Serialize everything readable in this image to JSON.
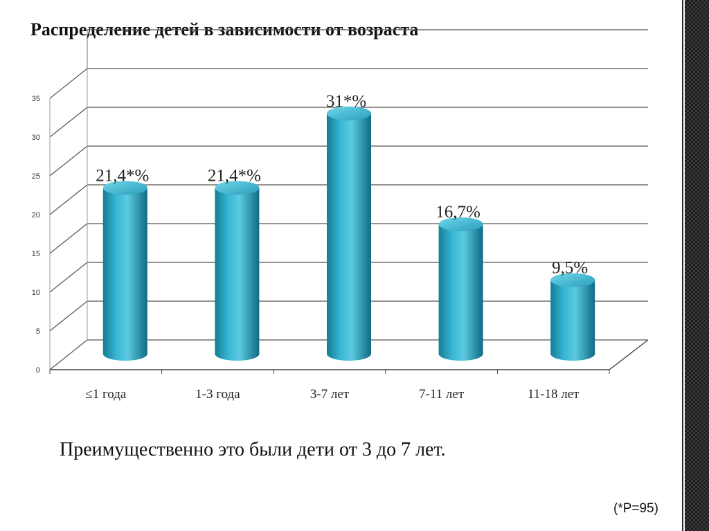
{
  "slide": {
    "title": "Распределение детей в зависимости от возраста",
    "caption": "Преимущественно это были дети от 3 до 7 лет.",
    "footnote": "(*P=95)"
  },
  "chart_data": {
    "type": "bar",
    "style": "3d-cylinder",
    "categories": [
      "≤1 года",
      "1-3 года",
      "3-7 лет",
      "7-11 лет",
      "11-18 лет"
    ],
    "values": [
      21.4,
      21.4,
      31,
      16.7,
      9.5
    ],
    "data_labels": [
      "21,4*%",
      "21,4*%",
      "31*%",
      "16,7%",
      "9,5%"
    ],
    "yticks": [
      0,
      5,
      10,
      15,
      20,
      25,
      30,
      35
    ],
    "ylim": [
      0,
      35
    ],
    "grid": true,
    "bar_color": "#2aa7c4"
  }
}
